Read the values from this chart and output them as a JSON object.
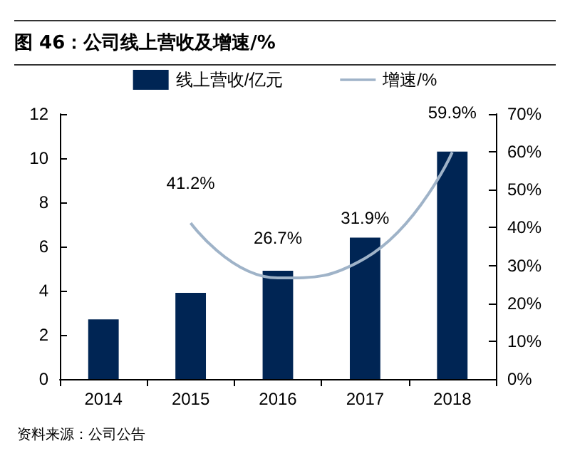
{
  "chart_data": {
    "type": "bar",
    "title": "图 46：公司线上营收及增速/%",
    "categories": [
      "2014",
      "2015",
      "2016",
      "2017",
      "2018"
    ],
    "series": [
      {
        "name": "线上营收/亿元",
        "color": "#002554",
        "values": [
          2.7,
          3.9,
          4.9,
          6.4,
          10.3
        ]
      },
      {
        "name": "增速/%",
        "type": "line",
        "axis": "y2",
        "color": "#9fb3c8",
        "values": [
          null,
          41.2,
          26.7,
          31.9,
          59.9
        ],
        "value_labels": [
          null,
          "41.2%",
          "26.7%",
          "31.9%",
          "59.9%"
        ]
      }
    ],
    "ylim": [
      0,
      12
    ],
    "yticks": [
      0,
      2,
      4,
      6,
      8,
      10,
      12
    ],
    "y2lim": [
      0,
      70
    ],
    "y2ticks": [
      {
        "value": 0,
        "label": "0%"
      },
      {
        "value": 10,
        "label": "10%"
      },
      {
        "value": 20,
        "label": "20%"
      },
      {
        "value": 30,
        "label": "30%"
      },
      {
        "value": 40,
        "label": "40%"
      },
      {
        "value": 50,
        "label": "50%"
      },
      {
        "value": 60,
        "label": "60%"
      },
      {
        "value": 70,
        "label": "70%"
      }
    ],
    "legend": "top",
    "grid": false,
    "marker": "none",
    "annotations": [
      "资料来源：公司公告"
    ]
  }
}
